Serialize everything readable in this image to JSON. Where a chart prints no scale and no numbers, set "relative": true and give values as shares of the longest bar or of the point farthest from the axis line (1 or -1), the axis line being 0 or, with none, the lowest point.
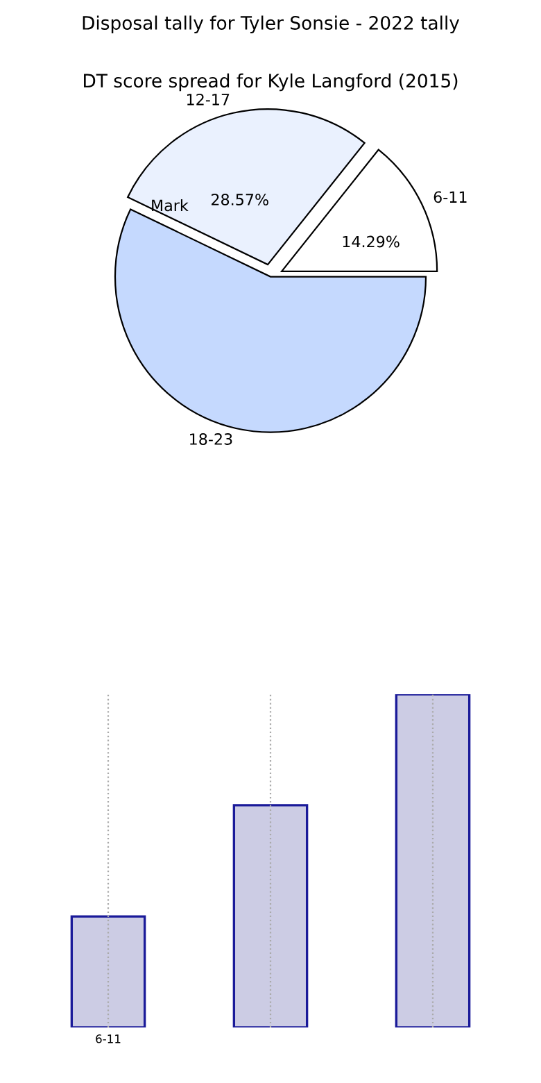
{
  "chart_data": [
    {
      "type": "pie",
      "title": "DT score spread for Kyle Langford (2015)",
      "categories": [
        "6-11",
        "12-17",
        "18-23"
      ],
      "values": [
        14.29,
        28.57,
        57.14
      ],
      "colors": [
        "#ffffff",
        "#eaf1fe",
        "#c5d9fe"
      ],
      "value_labels": [
        "14.29%",
        "28.57%",
        null
      ],
      "annotations": [
        "Mark"
      ]
    },
    {
      "type": "bar",
      "title": "Disposal tally for Tyler Sonsie - 2022 tally",
      "categories": [
        "6-11",
        null,
        null
      ],
      "values": [
        0.333,
        0.667,
        1
      ],
      "color": "#cccce4",
      "relative": true,
      "grid": "x"
    }
  ]
}
